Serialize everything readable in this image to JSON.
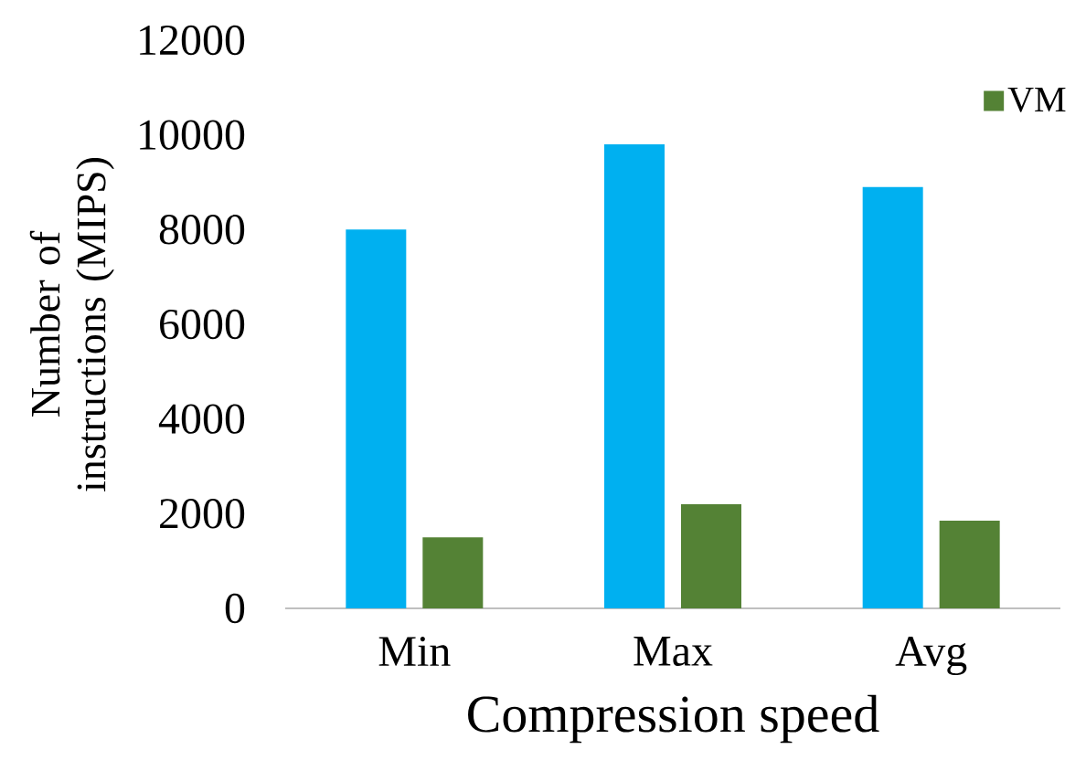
{
  "chart_data": {
    "type": "bar",
    "xlabel": "Compression speed",
    "ylabel": "Number of instructions (MIPS)",
    "categories": [
      "Min",
      "Max",
      "Avg"
    ],
    "series": [
      {
        "color": "#00b0f0",
        "values": [
          8000,
          9800,
          8900
        ]
      },
      {
        "name": "VM",
        "color": "#548235",
        "values": [
          1500,
          2200,
          1850
        ]
      }
    ],
    "ylim": [
      0,
      12000
    ],
    "yticks": [
      0,
      2000,
      4000,
      6000,
      8000,
      10000,
      12000
    ],
    "legend": "top right"
  }
}
